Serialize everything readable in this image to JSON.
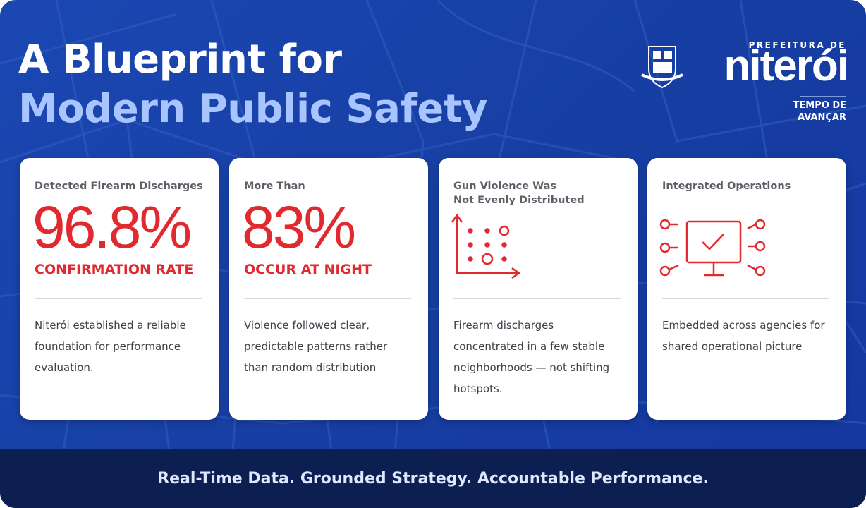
{
  "header": {
    "title_line1": "A Blueprint for",
    "title_line2": "Modern Public Safety"
  },
  "logo": {
    "prefix": "PREFEITURA DE",
    "name": "niterói",
    "slogan_line1": "TEMPO DE",
    "slogan_line2": "AVANÇAR"
  },
  "cards": [
    {
      "label": [
        "Detected Firearm Discharges"
      ],
      "stat": "96.8%",
      "stat_caption": "CONFIRMATION RATE",
      "body": [
        "Niterói established a reliable",
        "foundation for performance",
        "evaluation."
      ]
    },
    {
      "label": [
        "More Than"
      ],
      "stat": "83%",
      "stat_caption": "OCCUR AT NIGHT",
      "body": [
        "Violence followed clear,",
        "predictable patterns rather",
        "than random distribution"
      ]
    },
    {
      "label": [
        "Gun Violence Was",
        "Not Evenly Distributed"
      ],
      "body": [
        "Firearm discharges",
        "concentrated in a few stable",
        "neighborhoods — not shifting",
        "hotspots."
      ]
    },
    {
      "label": [
        "Integrated Operations"
      ],
      "body": [
        "Embedded across agencies for",
        "shared operational picture"
      ]
    }
  ],
  "footer": {
    "tagline": "Real-Time Data. Grounded Strategy. Accountable Performance."
  }
}
